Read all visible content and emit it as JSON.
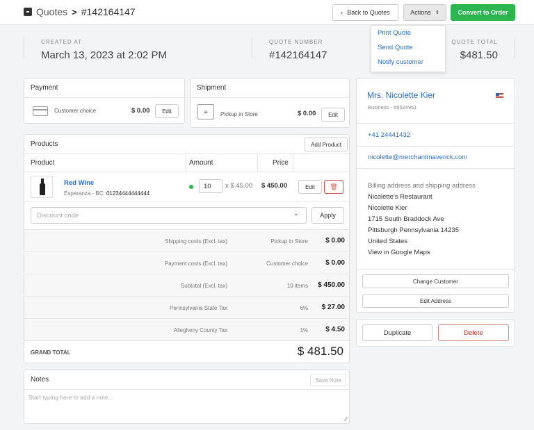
{
  "header": {
    "section": "Quotes",
    "separator": ">",
    "quote_id": "#142164147",
    "back_label": "Back to Quotes",
    "actions_label": "Actions",
    "convert_label": "Convert to Order"
  },
  "actions_menu": [
    "Print Quote",
    "Send Quote",
    "Notify customer"
  ],
  "summary": {
    "created_label": "CREATED AT",
    "created_value": "March 13, 2023 at 2:02 PM",
    "number_label": "QUOTE NUMBER",
    "number_value": "#142164147",
    "total_label": "QUOTE TOTAL",
    "total_value": "$481.50"
  },
  "payment": {
    "title": "Payment",
    "method": "Customer choice",
    "amount": "$ 0.00",
    "edit": "Edit"
  },
  "shipment": {
    "title": "Shipment",
    "method": "Pickup in Store",
    "amount": "$ 0.00",
    "edit": "Edit"
  },
  "products": {
    "title": "Products",
    "add_label": "Add Product",
    "col_product": "Product",
    "col_amount": "Amount",
    "col_price": "Price",
    "item": {
      "name": "Red Wine",
      "meta_prefix": "Esperanza - BC:",
      "barcode": "01234444444444",
      "qty": "10",
      "unit": "x $ 45.00",
      "price": "$ 450.00",
      "edit": "Edit"
    },
    "discount_placeholder": "Discount code",
    "apply_label": "Apply"
  },
  "totals": [
    {
      "label": "Shipping costs (Excl. tax)",
      "note": "Pickup in Store",
      "value": "$ 0.00"
    },
    {
      "label": "Payment costs (Excl. tax)",
      "note": "Customer choice",
      "value": "$ 0.00"
    },
    {
      "label": "Subtotal (Excl. tax)",
      "note": "10 items",
      "value": "$ 450.00"
    },
    {
      "label": "Pennsylvania State Tax",
      "note": "6%",
      "value": "$ 27.00"
    },
    {
      "label": "Allegheny County Tax",
      "note": "1%",
      "value": "$ 4.50"
    }
  ],
  "grand_total": {
    "label": "GRAND TOTAL",
    "value": "$ 481.50"
  },
  "notes": {
    "title": "Notes",
    "save_label": "Save Note",
    "placeholder": "Start typing here to add a note..."
  },
  "customer": {
    "name": "Mrs. Nicolette Kier",
    "sub": "Business - #9524961",
    "phone": "+41 24441432",
    "email": "nicolette@merchantmaverick.com",
    "address_title": "Billing address and shipping address",
    "address": [
      "Nicolette's Restaurant",
      "Nicolette Kier",
      "1715 South Braddock Ave",
      "Pittsburgh Pennsylvania 14235",
      "United States"
    ],
    "maps_link": "View in Google Maps",
    "change_label": "Change Customer",
    "edit_address_label": "Edit Address"
  },
  "bottom_actions": {
    "duplicate": "Duplicate",
    "delete": "Delete"
  },
  "colors": {
    "accent": "#2a6fc9",
    "convert": "#2db552",
    "delete": "#c0392b"
  }
}
